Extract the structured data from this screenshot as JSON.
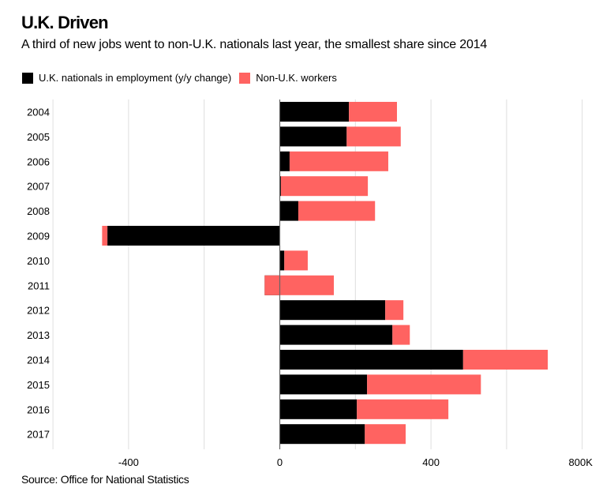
{
  "chart_data": {
    "type": "bar",
    "orientation": "horizontal",
    "stacked": true,
    "title": "U.K. Driven",
    "subtitle": "A third of new jobs went to non-U.K. nationals last year, the smallest share since 2014",
    "source": "Source: Office for National Statistics",
    "xlabel": "",
    "ylabel": "",
    "xlim": [
      -520,
      800
    ],
    "x_ticks": [
      {
        "value": -400,
        "label": "-400"
      },
      {
        "value": 0,
        "label": "0"
      },
      {
        "value": 400,
        "label": "400"
      },
      {
        "value": 800,
        "label": "800K"
      }
    ],
    "gridlines": [
      -600,
      -400,
      -200,
      0,
      200,
      400,
      600,
      800
    ],
    "grid": true,
    "legend_position": "top-left",
    "categories": [
      "2004",
      "2005",
      "2006",
      "2007",
      "2008",
      "2009",
      "2010",
      "2011",
      "2012",
      "2013",
      "2014",
      "2015",
      "2016",
      "2017"
    ],
    "series": [
      {
        "name": "U.K. nationals in employment (y/y change)",
        "color": "#000000",
        "values": [
          183,
          177,
          26,
          3,
          49,
          -456,
          12,
          -40,
          279,
          298,
          485,
          231,
          204,
          225
        ]
      },
      {
        "name": "Non-U.K. workers",
        "color": "#ff6361",
        "values": [
          127,
          143,
          261,
          230,
          203,
          -14,
          62,
          183,
          48,
          46,
          224,
          301,
          242,
          108
        ]
      }
    ]
  }
}
